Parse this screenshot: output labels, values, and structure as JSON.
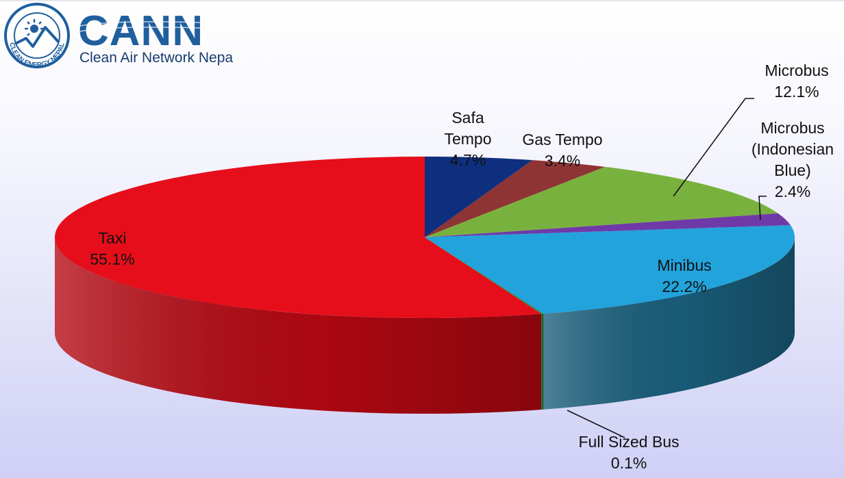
{
  "logo": {
    "ring_text": "CLEAN ENERGY NEPAL",
    "name": "CANN",
    "tagline": "Clean Air Network Nepal",
    "colors": {
      "blue": "#1f5f9e",
      "dark": "#173b6e"
    }
  },
  "chart_data": {
    "type": "pie",
    "style": "3d",
    "title": "",
    "slices": [
      {
        "lines": [
          "Safa",
          "Tempo"
        ],
        "value_label": "4.7%",
        "value": 4.7,
        "color": "#0e2f7d",
        "side": "#0a2260"
      },
      {
        "lines": [
          "Gas Tempo"
        ],
        "value_label": "3.4%",
        "value": 3.4,
        "color": "#8f3434",
        "side": "#6b2424"
      },
      {
        "lines": [
          "Microbus"
        ],
        "value_label": "12.1%",
        "value": 12.1,
        "color": "#79b13e",
        "side": "#56852a"
      },
      {
        "lines": [
          "Microbus",
          "(Indonesian",
          "Blue)"
        ],
        "value_label": "2.4%",
        "value": 2.4,
        "color": "#6f3aa8",
        "side": "#4d2677"
      },
      {
        "lines": [
          "Minibus"
        ],
        "value_label": "22.2%",
        "value": 22.2,
        "color": "#22a3dc",
        "side": "#1a5f7c"
      },
      {
        "lines": [
          "Full Sized Bus"
        ],
        "value_label": "0.1%",
        "value": 0.1,
        "color": "#2e8b3a",
        "side": "#1e6a2a"
      },
      {
        "lines": [
          "Taxi"
        ],
        "value_label": "55.1%",
        "value": 55.1,
        "color": "#e50e1a",
        "side": "#b40812"
      }
    ]
  }
}
